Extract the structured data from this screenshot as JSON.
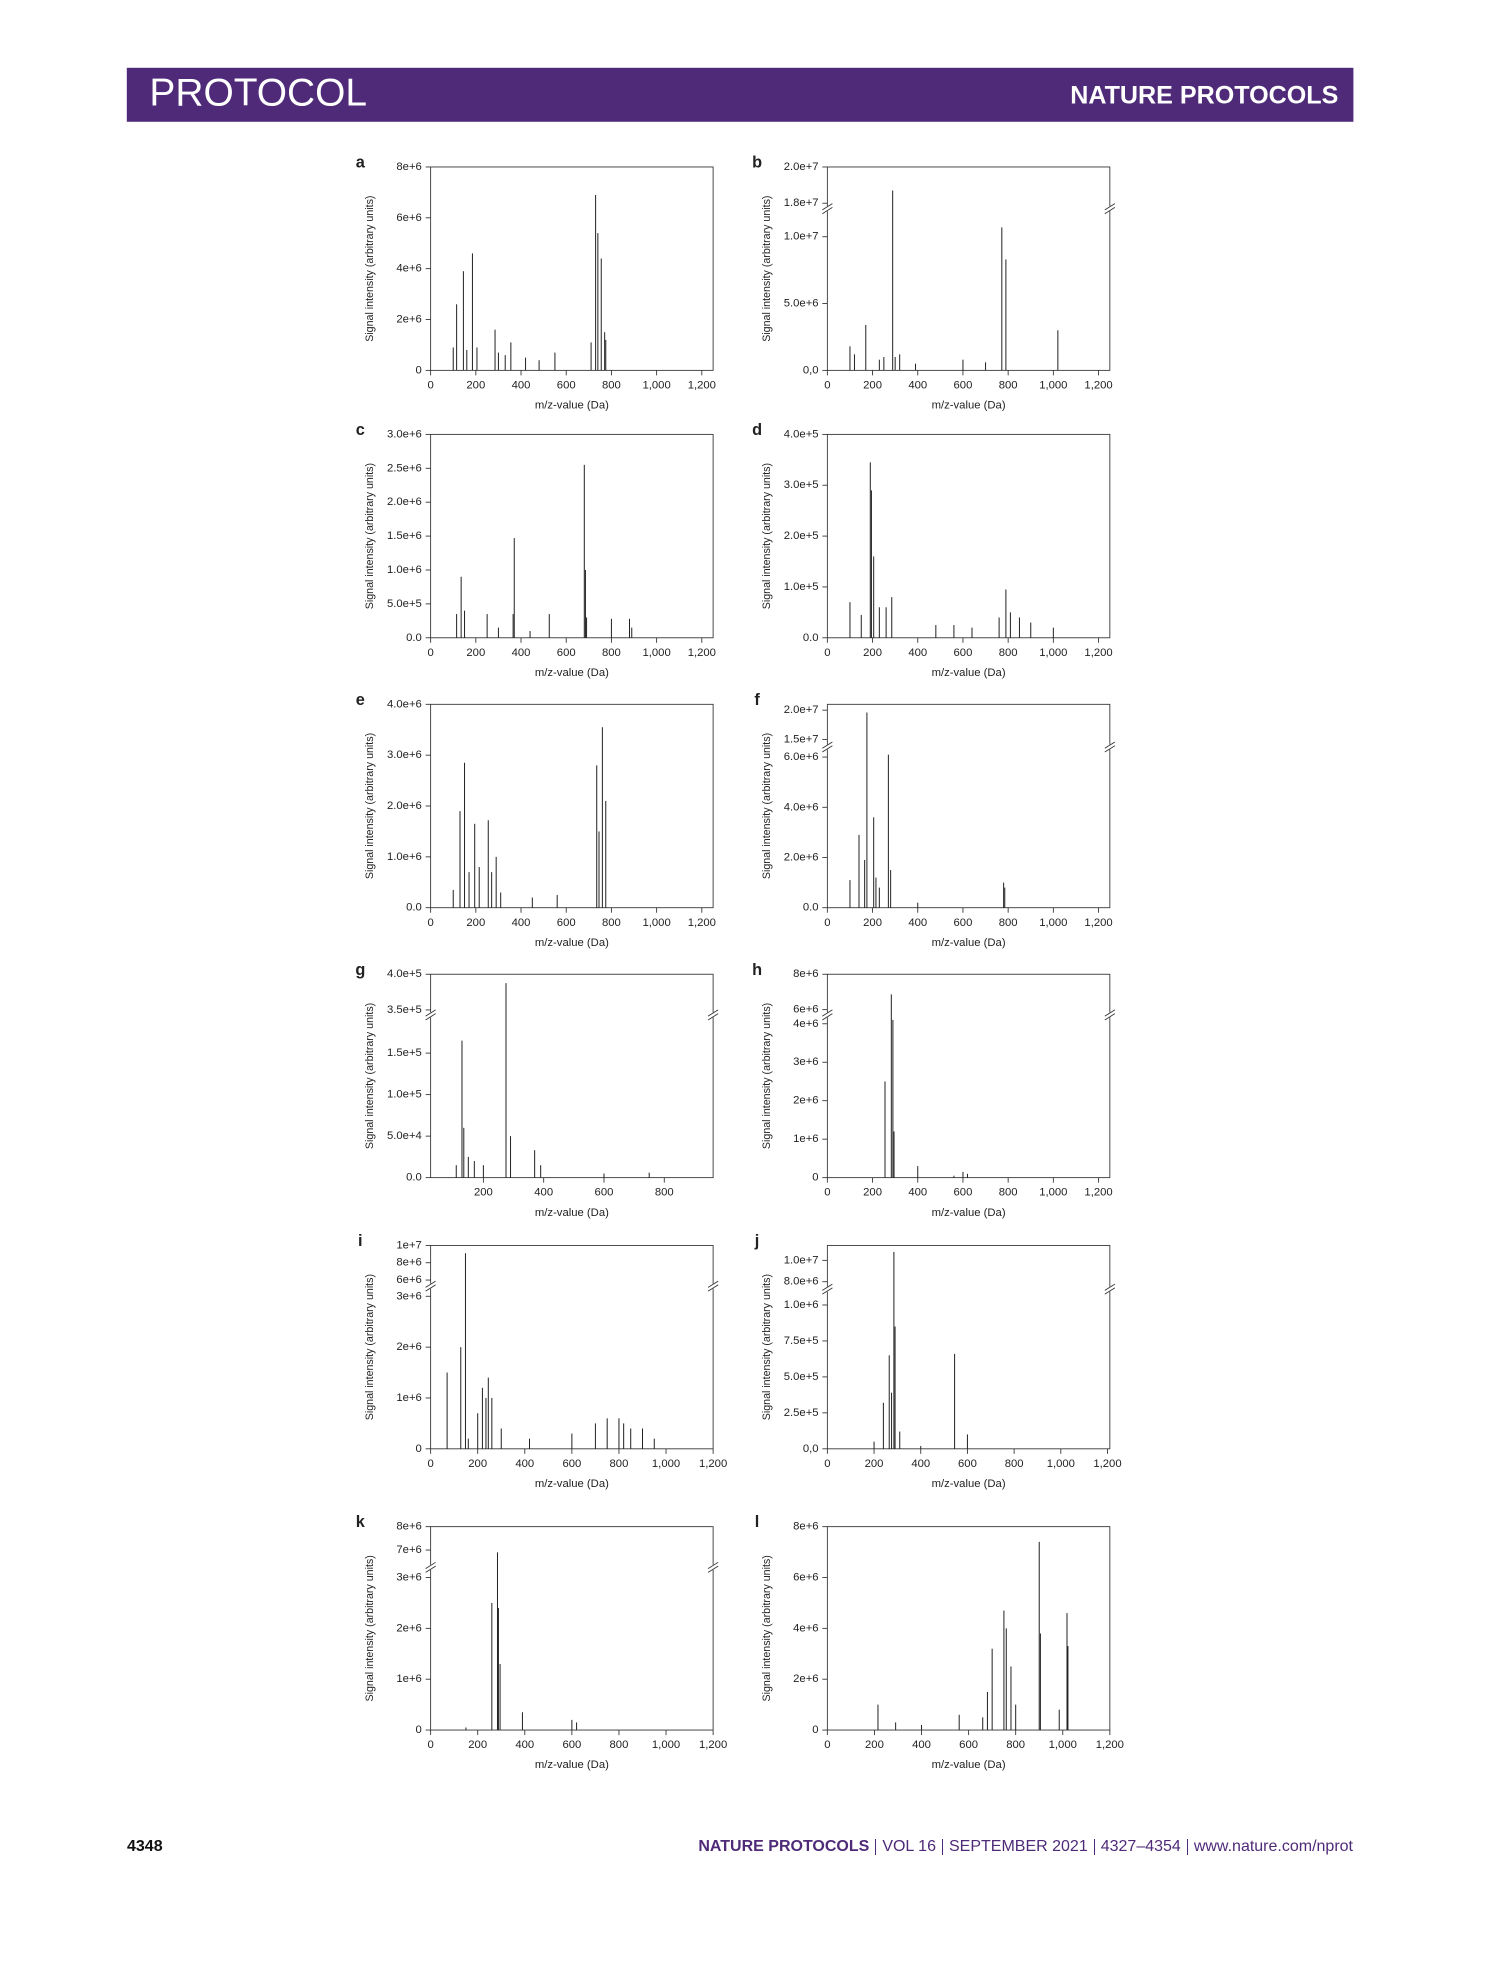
{
  "header": {
    "section": "PROTOCOL",
    "journal": "NATURE PROTOCOLS"
  },
  "footer": {
    "page": "4348",
    "journal": "NATURE PROTOCOLS",
    "volume": "VOL 16",
    "date": "SEPTEMBER 2021",
    "pages": "4327–4354",
    "url": "www.nature.com/nprot"
  },
  "chart_data": [
    {
      "type": "stem",
      "panel": "a",
      "ylabel": "Signal intensity (arbitrary units)",
      "xlabel": "m/z-value (Da)",
      "color": "#222222",
      "x": [
        100,
        115,
        145,
        160,
        185,
        205,
        285,
        300,
        330,
        355,
        420,
        480,
        550,
        710,
        730,
        740,
        755,
        770,
        775
      ],
      "values": [
        900000,
        2600000,
        3900000,
        800000,
        4600000,
        900000,
        1600000,
        700000,
        600000,
        1100000,
        500000,
        400000,
        700000,
        1100000,
        6900000,
        5400000,
        4400000,
        1500000,
        1200000
      ],
      "xlim": [
        0,
        1250
      ],
      "ylim": [
        0,
        8000000
      ],
      "xticks": [
        0,
        200,
        400,
        600,
        800,
        {
          "value": 1000,
          "label": "1,000"
        },
        {
          "value": 1200,
          "label": "1,200"
        }
      ],
      "yticks": [
        0,
        {
          "value": 2000000,
          "label": "2e+6"
        },
        {
          "value": 4000000,
          "label": "4e+6"
        },
        {
          "value": 6000000,
          "label": "6e+6"
        },
        {
          "value": 8000000,
          "label": "8e+6"
        }
      ]
    },
    {
      "type": "stem",
      "panel": "b",
      "ylabel": "Signal intensity (arbitrary units)",
      "xlabel": "m/z-value (Da)",
      "color": "#222222",
      "x": [
        100,
        120,
        170,
        230,
        250,
        289,
        300,
        320,
        390,
        600,
        700,
        772,
        790,
        1020
      ],
      "values": [
        1800000,
        1200000,
        3400000,
        800000,
        1000000,
        18700000,
        1000000,
        1200000,
        500000,
        800000,
        600000,
        10700000,
        8300000,
        3000000
      ],
      "xlim": [
        0,
        1250
      ],
      "ylim": [
        0,
        20000000
      ],
      "ybreak": [
        12100000,
        17700000
      ],
      "xticks": [
        0,
        200,
        400,
        600,
        800,
        {
          "value": 1000,
          "label": "1,000"
        },
        {
          "value": 1200,
          "label": "1,200"
        }
      ],
      "yticks": [
        {
          "value": 0,
          "label": "0,0"
        },
        {
          "value": 5000000,
          "label": "5.0e+6"
        },
        {
          "value": 10000000,
          "label": "1.0e+7"
        },
        {
          "value": 18000000,
          "label": "1.8e+7"
        },
        {
          "value": 20000000,
          "label": "2.0e+7"
        }
      ]
    },
    {
      "type": "stem",
      "panel": "c",
      "ylabel": "Signal intensity (arbitrary units)",
      "xlabel": "m/z-value (Da)",
      "color": "#222222",
      "x": [
        115,
        135,
        150,
        250,
        300,
        365,
        370,
        440,
        525,
        680,
        685,
        690,
        800,
        880,
        890
      ],
      "values": [
        350000,
        900000,
        400000,
        350000,
        150000,
        350000,
        1470000,
        100000,
        350000,
        2550000,
        1000000,
        300000,
        280000,
        280000,
        150000
      ],
      "xlim": [
        0,
        1250
      ],
      "ylim": [
        0,
        3000000
      ],
      "xticks": [
        0,
        200,
        400,
        600,
        800,
        {
          "value": 1000,
          "label": "1,000"
        },
        {
          "value": 1200,
          "label": "1,200"
        }
      ],
      "yticks": [
        {
          "value": 0,
          "label": "0.0"
        },
        {
          "value": 500000,
          "label": "5.0e+5"
        },
        {
          "value": 1000000,
          "label": "1.0e+6"
        },
        {
          "value": 1500000,
          "label": "1.5e+6"
        },
        {
          "value": 2000000,
          "label": "2.0e+6"
        },
        {
          "value": 2500000,
          "label": "2.5e+6"
        },
        {
          "value": 3000000,
          "label": "3.0e+6"
        }
      ]
    },
    {
      "type": "stem",
      "panel": "d",
      "ylabel": "Signal intensity (arbitrary units)",
      "xlabel": "m/z-value (Da)",
      "color": "#222222",
      "x": [
        100,
        150,
        190,
        195,
        205,
        230,
        260,
        285,
        480,
        560,
        640,
        760,
        790,
        810,
        850,
        900,
        1000
      ],
      "values": [
        70000,
        45000,
        345000,
        290000,
        160000,
        60000,
        60000,
        80000,
        25000,
        25000,
        20000,
        40000,
        95000,
        50000,
        40000,
        30000,
        20000
      ],
      "xlim": [
        0,
        1250
      ],
      "ylim": [
        0,
        400000
      ],
      "xticks": [
        0,
        200,
        400,
        600,
        800,
        {
          "value": 1000,
          "label": "1,000"
        },
        {
          "value": 1200,
          "label": "1,200"
        }
      ],
      "yticks": [
        {
          "value": 0,
          "label": "0.0"
        },
        {
          "value": 100000,
          "label": "1.0e+5"
        },
        {
          "value": 200000,
          "label": "2.0e+5"
        },
        {
          "value": 300000,
          "label": "3.0e+5"
        },
        {
          "value": 400000,
          "label": "4.0e+5"
        }
      ]
    },
    {
      "type": "stem",
      "panel": "e",
      "ylabel": "Signal intensity (arbitrary units)",
      "xlabel": "m/z-value (Da)",
      "color": "#222222",
      "x": [
        100,
        130,
        150,
        170,
        195,
        215,
        255,
        270,
        290,
        310,
        450,
        560,
        735,
        745,
        760,
        775
      ],
      "values": [
        350000,
        1900000,
        2850000,
        700000,
        1650000,
        800000,
        1720000,
        700000,
        1000000,
        300000,
        200000,
        250000,
        2800000,
        1500000,
        3550000,
        2100000
      ],
      "xlim": [
        0,
        1250
      ],
      "ylim": [
        0,
        4000000
      ],
      "xticks": [
        0,
        200,
        400,
        600,
        800,
        {
          "value": 1000,
          "label": "1,000"
        },
        {
          "value": 1200,
          "label": "1,200"
        }
      ],
      "yticks": [
        {
          "value": 0,
          "label": "0.0"
        },
        {
          "value": 1000000,
          "label": "1.0e+6"
        },
        {
          "value": 2000000,
          "label": "2.0e+6"
        },
        {
          "value": 3000000,
          "label": "3.0e+6"
        },
        {
          "value": 4000000,
          "label": "4.0e+6"
        }
      ]
    },
    {
      "type": "stem",
      "panel": "f",
      "ylabel": "Signal intensity (arbitrary units)",
      "xlabel": "m/z-value (Da)",
      "color": "#222222",
      "x": [
        100,
        140,
        165,
        175,
        205,
        215,
        230,
        270,
        280,
        400,
        780,
        785
      ],
      "values": [
        1100000,
        2900000,
        1900000,
        19600000,
        3600000,
        1200000,
        800000,
        6100000,
        1500000,
        200000,
        1000000,
        800000
      ],
      "xlim": [
        0,
        1250
      ],
      "ylim": [
        0,
        21000000
      ],
      "ybreak": [
        6400000,
        13700000
      ],
      "xticks": [
        0,
        200,
        400,
        600,
        800,
        {
          "value": 1000,
          "label": "1,000"
        },
        {
          "value": 1200,
          "label": "1,200"
        }
      ],
      "yticks": [
        {
          "value": 0,
          "label": "0.0"
        },
        {
          "value": 2000000,
          "label": "2.0e+6"
        },
        {
          "value": 4000000,
          "label": "4.0e+6"
        },
        {
          "value": 6000000,
          "label": "6.0e+6"
        },
        {
          "value": 15000000,
          "label": "1.5e+7"
        },
        {
          "value": 20000000,
          "label": "2.0e+7"
        }
      ]
    },
    {
      "type": "stem",
      "panel": "g",
      "ylabel": "Signal intensity (arbitrary units)",
      "xlabel": "m/z-value (Da)",
      "color": "#222222",
      "x": [
        110,
        129,
        135,
        150,
        170,
        200,
        275,
        290,
        370,
        390,
        600,
        750
      ],
      "values": [
        15000,
        165000,
        60000,
        25000,
        20000,
        15000,
        387500,
        50000,
        33000,
        15000,
        5000,
        6000
      ],
      "xlim": [
        25,
        962
      ],
      "ylim": [
        0,
        400000
      ],
      "ybreak": [
        196000,
        343000
      ],
      "xticks": [
        200,
        400,
        600,
        800
      ],
      "yticks": [
        {
          "value": 0,
          "label": "0.0"
        },
        {
          "value": 50000,
          "label": "5.0e+4"
        },
        {
          "value": 100000,
          "label": "1.0e+5"
        },
        {
          "value": 150000,
          "label": "1.5e+5"
        },
        {
          "value": 350000,
          "label": "3.5e+5"
        },
        {
          "value": 400000,
          "label": "4.0e+5"
        }
      ]
    },
    {
      "type": "stem",
      "panel": "h",
      "ylabel": "Signal intensity (arbitrary units)",
      "xlabel": "m/z-value (Da)",
      "color": "#222222",
      "x": [
        255,
        283,
        290,
        295,
        400,
        560,
        600,
        620
      ],
      "values": [
        2500000,
        6860000,
        4100000,
        1200000,
        300000,
        50000,
        150000,
        100000
      ],
      "xlim": [
        0,
        1250
      ],
      "ylim": [
        0,
        8000000
      ],
      "ybreak": [
        4230000,
        5700000
      ],
      "xticks": [
        0,
        200,
        400,
        600,
        800,
        {
          "value": 1000,
          "label": "1,000"
        },
        {
          "value": 1200,
          "label": "1,200"
        }
      ],
      "yticks": [
        0,
        {
          "value": 1000000,
          "label": "1e+6"
        },
        {
          "value": 2000000,
          "label": "2e+6"
        },
        {
          "value": 3000000,
          "label": "3e+6"
        },
        {
          "value": 4000000,
          "label": "4e+6"
        },
        {
          "value": 6000000,
          "label": "6e+6"
        },
        {
          "value": 8000000,
          "label": "8e+6"
        }
      ]
    },
    {
      "type": "stem",
      "panel": "i",
      "ylabel": "Signal intensity (arbitrary units)",
      "xlabel": "m/z-value (Da)",
      "color": "#222222",
      "x": [
        70,
        128,
        148,
        160,
        200,
        220,
        235,
        245,
        260,
        300,
        420,
        600,
        700,
        750,
        800,
        820,
        850,
        900,
        950
      ],
      "values": [
        1500000,
        2000000,
        9100000,
        200000,
        700000,
        1200000,
        1000000,
        1400000,
        1000000,
        400000,
        200000,
        300000,
        500000,
        600000,
        600000,
        500000,
        400000,
        400000,
        200000
      ],
      "xlim": [
        0,
        1200
      ],
      "ylim": [
        0,
        10000000
      ],
      "ybreak": [
        3200000,
        5300000
      ],
      "xticks": [
        0,
        200,
        400,
        600,
        800,
        {
          "value": 1000,
          "label": "1,000"
        },
        {
          "value": 1200,
          "label": "1,200"
        }
      ],
      "yticks": [
        0,
        {
          "value": 1000000,
          "label": "1e+6"
        },
        {
          "value": 2000000,
          "label": "2e+6"
        },
        {
          "value": 3000000,
          "label": "3e+6"
        },
        {
          "value": 6000000,
          "label": "6e+6"
        },
        {
          "value": 8000000,
          "label": "8e+6"
        },
        {
          "value": 10000000,
          "label": "1e+7"
        }
      ]
    },
    {
      "type": "stem",
      "panel": "j",
      "ylabel": "Signal intensity (arbitrary units)",
      "xlabel": "m/z-value (Da)",
      "color": "#222222",
      "x": [
        200,
        240,
        265,
        275,
        285,
        290,
        310,
        400,
        545,
        600
      ],
      "values": [
        50000,
        320000,
        650000,
        390000,
        10800000,
        850000,
        120000,
        20000,
        660000,
        100000
      ],
      "xlim": [
        0,
        1210
      ],
      "ylim": [
        0,
        11400000
      ],
      "ybreak": [
        1110000,
        7300000
      ],
      "xticks": [
        0,
        200,
        400,
        600,
        800,
        {
          "value": 1000,
          "label": "1,000"
        },
        {
          "value": 1200,
          "label": "1,200"
        }
      ],
      "yticks": [
        {
          "value": 0,
          "label": "0,0"
        },
        {
          "value": 250000,
          "label": "2.5e+5"
        },
        {
          "value": 500000,
          "label": "5.0e+5"
        },
        {
          "value": 750000,
          "label": "7.5e+5"
        },
        {
          "value": 1000000,
          "label": "1.0e+6"
        },
        {
          "value": 8000000,
          "label": "8.0e+6"
        },
        {
          "value": 10000000,
          "label": "1.0e+7"
        }
      ]
    },
    {
      "type": "stem",
      "panel": "k",
      "ylabel": "Signal intensity (arbitrary units)",
      "xlabel": "m/z-value (Da)",
      "color": "#222222",
      "x": [
        150,
        260,
        284,
        288,
        295,
        390,
        600,
        620
      ],
      "values": [
        50000,
        2500000,
        6900000,
        2400000,
        1300000,
        350000,
        200000,
        150000
      ],
      "xlim": [
        0,
        1200
      ],
      "ylim": [
        0,
        8000000
      ],
      "ybreak": [
        3200000,
        6260000
      ],
      "xticks": [
        0,
        200,
        400,
        600,
        800,
        {
          "value": 1000,
          "label": "1,000"
        },
        {
          "value": 1200,
          "label": "1,200"
        }
      ],
      "yticks": [
        0,
        {
          "value": 1000000,
          "label": "1e+6"
        },
        {
          "value": 2000000,
          "label": "2e+6"
        },
        {
          "value": 3000000,
          "label": "3e+6"
        },
        {
          "value": 7000000,
          "label": "7e+6"
        },
        {
          "value": 8000000,
          "label": "8e+6"
        }
      ]
    },
    {
      "type": "stem",
      "panel": "l",
      "ylabel": "Signal intensity (arbitrary units)",
      "xlabel": "m/z-value (Da)",
      "color": "#222222",
      "x": [
        215,
        290,
        400,
        560,
        660,
        680,
        700,
        750,
        760,
        780,
        800,
        900,
        905,
        985,
        1018,
        1022
      ],
      "values": [
        1000000,
        300000,
        200000,
        600000,
        500000,
        1500000,
        3200000,
        4700000,
        4000000,
        2500000,
        1000000,
        7400000,
        3800000,
        800000,
        4600000,
        3300000
      ],
      "xlim": [
        0,
        1200
      ],
      "ylim": [
        0,
        8000000
      ],
      "xticks": [
        0,
        200,
        400,
        600,
        800,
        {
          "value": 1000,
          "label": "1,000"
        },
        {
          "value": 1200,
          "label": "1,200"
        }
      ],
      "yticks": [
        0,
        {
          "value": 2000000,
          "label": "2e+6"
        },
        {
          "value": 4000000,
          "label": "4e+6"
        },
        {
          "value": 6000000,
          "label": "6e+6"
        },
        {
          "value": 8000000,
          "label": "8e+6"
        }
      ]
    }
  ]
}
